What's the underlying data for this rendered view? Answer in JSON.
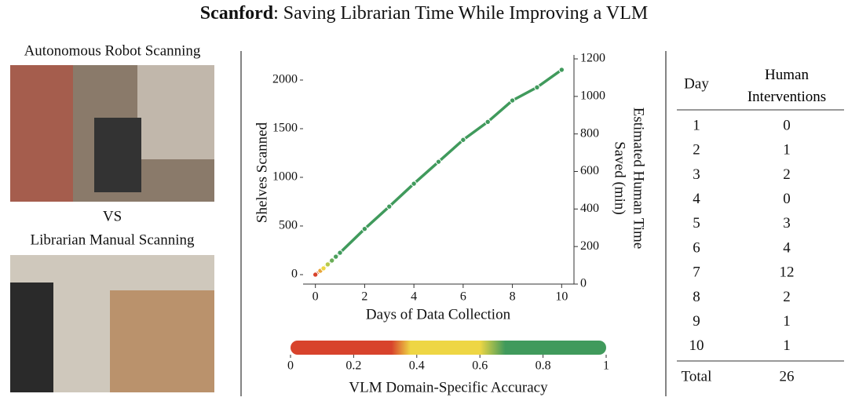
{
  "title_bold": "Scanford",
  "title_rest": ": Saving Librarian Time While Improving a VLM",
  "left_panel": {
    "top_label": "Autonomous Robot Scanning",
    "vs": "VS",
    "bottom_label": "Librarian Manual Scanning"
  },
  "chart_data": {
    "type": "line",
    "xlabel": "Days of Data Collection",
    "ylabel": "Shelves Scanned",
    "y2label": [
      "Estimated Human Time",
      "Saved (min)"
    ],
    "xlim": [
      -0.5,
      10.5
    ],
    "xticks": [
      0,
      2,
      4,
      6,
      8,
      10
    ],
    "ylim": [
      -97,
      2258
    ],
    "yticks": [
      0,
      500,
      1000,
      1500,
      2000
    ],
    "y2lim": [
      0,
      1221
    ],
    "y2ticks": [
      0,
      200,
      400,
      600,
      800,
      1000,
      1200
    ],
    "series": [
      {
        "color": "#409a5c",
        "x": [
          0,
          0.2,
          0.33,
          0.5,
          0.67,
          0.83,
          1,
          2,
          3,
          4,
          5,
          6,
          7,
          8,
          9,
          10
        ],
        "values": [
          0,
          40,
          65,
          105,
          145,
          185,
          225,
          470,
          700,
          935,
          1160,
          1385,
          1570,
          1790,
          1925,
          2105
        ],
        "colors": [
          "#d8432c",
          "#e8a53a",
          "#eed644",
          "#b7c94a",
          "#6aad57",
          "#4a9f5b",
          "#409a5c",
          "#409a5c",
          "#409a5c",
          "#409a5c",
          "#409a5c",
          "#409a5c",
          "#409a5c",
          "#409a5c",
          "#409a5c",
          "#409a5c"
        ]
      }
    ]
  },
  "colorbar": {
    "label": "VLM Domain-Specific Accuracy",
    "lim": [
      0,
      1
    ],
    "ticks": [
      0,
      0.2,
      0.4,
      0.6,
      0.8,
      1
    ],
    "stops": [
      {
        "value": 0,
        "color": "#d8432c"
      },
      {
        "value": 0.32,
        "color": "#d8432c"
      },
      {
        "value": 0.38,
        "color": "#eed644"
      },
      {
        "value": 0.6,
        "color": "#eed644"
      },
      {
        "value": 0.68,
        "color": "#409a5c"
      },
      {
        "value": 1,
        "color": "#409a5c"
      }
    ]
  },
  "table": {
    "header": [
      "Day",
      "Human Interventions"
    ],
    "rows": [
      [
        1,
        0
      ],
      [
        2,
        1
      ],
      [
        3,
        2
      ],
      [
        4,
        0
      ],
      [
        5,
        3
      ],
      [
        6,
        4
      ],
      [
        7,
        12
      ],
      [
        8,
        2
      ],
      [
        9,
        1
      ],
      [
        10,
        1
      ]
    ],
    "total": [
      "Total",
      26
    ]
  }
}
